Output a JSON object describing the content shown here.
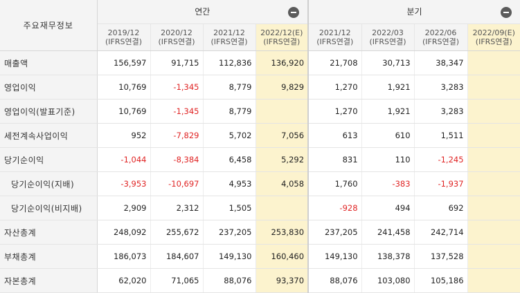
{
  "header": {
    "title": "주요재무정보",
    "annual_label": "연간",
    "quarterly_label": "분기"
  },
  "columns": {
    "annual": [
      {
        "period": "2019/12",
        "basis": "(IFRS연결)"
      },
      {
        "period": "2020/12",
        "basis": "(IFRS연결)"
      },
      {
        "period": "2021/12",
        "basis": "(IFRS연결)"
      },
      {
        "period": "2022/12(E)",
        "basis": "(IFRS연결)"
      }
    ],
    "quarterly": [
      {
        "period": "2021/12",
        "basis": "(IFRS연결)"
      },
      {
        "period": "2022/03",
        "basis": "(IFRS연결)"
      },
      {
        "period": "2022/06",
        "basis": "(IFRS연결)"
      },
      {
        "period": "2022/09(E)",
        "basis": "(IFRS연결)"
      }
    ]
  },
  "rows": [
    {
      "label": "매출액",
      "annual": [
        "156,597",
        "91,715",
        "112,836",
        "136,920"
      ],
      "quarterly": [
        "21,708",
        "30,713",
        "38,347",
        ""
      ]
    },
    {
      "label": "영업이익",
      "annual": [
        "10,769",
        "-1,345",
        "8,779",
        "9,829"
      ],
      "quarterly": [
        "1,270",
        "1,921",
        "3,283",
        ""
      ]
    },
    {
      "label": "영업이익(발표기준)",
      "annual": [
        "10,769",
        "-1,345",
        "8,779",
        ""
      ],
      "quarterly": [
        "1,270",
        "1,921",
        "3,283",
        ""
      ]
    },
    {
      "label": "세전계속사업이익",
      "annual": [
        "952",
        "-7,829",
        "5,702",
        "7,056"
      ],
      "quarterly": [
        "613",
        "610",
        "1,511",
        ""
      ]
    },
    {
      "label": "당기순이익",
      "annual": [
        "-1,044",
        "-8,384",
        "6,458",
        "5,292"
      ],
      "quarterly": [
        "831",
        "110",
        "-1,245",
        ""
      ]
    },
    {
      "label": "당기순이익(지배)",
      "annual": [
        "-3,953",
        "-10,697",
        "4,953",
        "4,058"
      ],
      "quarterly": [
        "1,760",
        "-383",
        "-1,937",
        ""
      ]
    },
    {
      "label": "당기순이익(비지배)",
      "annual": [
        "2,909",
        "2,312",
        "1,505",
        ""
      ],
      "quarterly": [
        "-928",
        "494",
        "692",
        ""
      ]
    },
    {
      "label": "자산총계",
      "annual": [
        "248,092",
        "255,672",
        "237,205",
        "253,830"
      ],
      "quarterly": [
        "237,205",
        "241,458",
        "242,714",
        ""
      ]
    },
    {
      "label": "부채총계",
      "annual": [
        "186,073",
        "184,607",
        "149,130",
        "160,460"
      ],
      "quarterly": [
        "149,130",
        "138,378",
        "137,528",
        ""
      ]
    },
    {
      "label": "자본총계",
      "annual": [
        "62,020",
        "71,065",
        "88,076",
        "93,370"
      ],
      "quarterly": [
        "88,076",
        "103,080",
        "105,186",
        ""
      ]
    }
  ],
  "colors": {
    "negative": "#e02424",
    "estimate_bg": "#fcf3ce",
    "header_bg": "#f4f4f4"
  }
}
